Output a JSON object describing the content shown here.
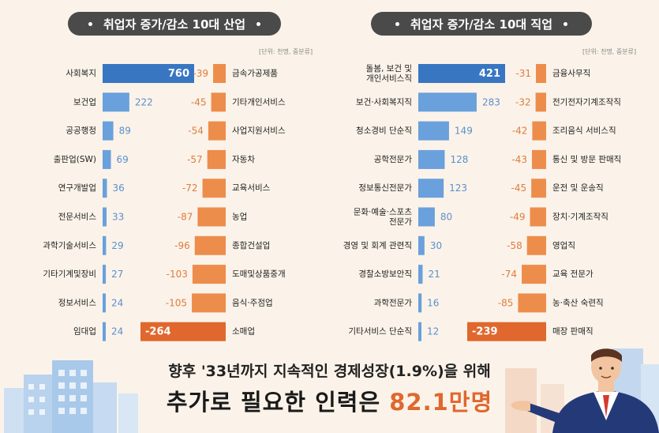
{
  "colors": {
    "background": "#fbf3e9",
    "increase_bar": "#6aa0dc",
    "increase_bar_strong": "#3876c2",
    "decrease_bar": "#ed8d4c",
    "decrease_bar_strong": "#e0672d",
    "increase_value_text": "#5b8fcf",
    "decrease_value_text": "#e07b3e",
    "pill": "#4a4a4a",
    "highlight": "#e0672d"
  },
  "footer": {
    "tagline": "향후 '33년까지 지속적인 경제성장(1.9%)을 위해",
    "headline_prefix": "추가로 필요한 인력은 ",
    "headline_highlight": "82.1만명"
  },
  "chart_data": [
    {
      "type": "bar",
      "title": "취업자 증가/감소 10대 산업",
      "unit_note": "[단위: 천명, 중분류]",
      "increase": {
        "categories": [
          "사회복지",
          "보건업",
          "공공행정",
          "출판업(SW)",
          "연구개발업",
          "전문서비스",
          "과학기술서비스",
          "기타기계및장비",
          "정보서비스",
          "임대업"
        ],
        "values": [
          760,
          222,
          89,
          69,
          36,
          33,
          29,
          27,
          24,
          24
        ]
      },
      "decrease": {
        "categories": [
          "금속가공제품",
          "기타개인서비스",
          "사업지원서비스",
          "자동차",
          "교육서비스",
          "농업",
          "종합건설업",
          "도매및상품중개",
          "음식·주점업",
          "소매업"
        ],
        "values": [
          -39,
          -45,
          -54,
          -57,
          -72,
          -87,
          -96,
          -103,
          -105,
          -264
        ]
      }
    },
    {
      "type": "bar",
      "title": "취업자 증가/감소 10대 직업",
      "unit_note": "[단위: 천명, 중분류]",
      "increase": {
        "categories": [
          "돌봄, 보건 및\n개인서비스직",
          "보건·사회복지직",
          "청소경비 단순직",
          "공학전문가",
          "정보통신전문가",
          "문화·예술·스포츠\n전문가",
          "경영 및 회계 관련직",
          "경찰소방보안직",
          "과학전문가",
          "기타서비스 단순직"
        ],
        "values": [
          421,
          283,
          149,
          128,
          123,
          80,
          30,
          21,
          16,
          12
        ]
      },
      "decrease": {
        "categories": [
          "금융사무직",
          "전기전자기계조작직",
          "조리음식 서비스직",
          "통신 및 방문 판매직",
          "운전 및 운송직",
          "장치·기계조작직",
          "영업직",
          "교육 전문가",
          "농·축산 숙련직",
          "매장 판매직"
        ],
        "values": [
          -31,
          -32,
          -42,
          -43,
          -45,
          -49,
          -58,
          -74,
          -85,
          -239
        ]
      }
    }
  ]
}
